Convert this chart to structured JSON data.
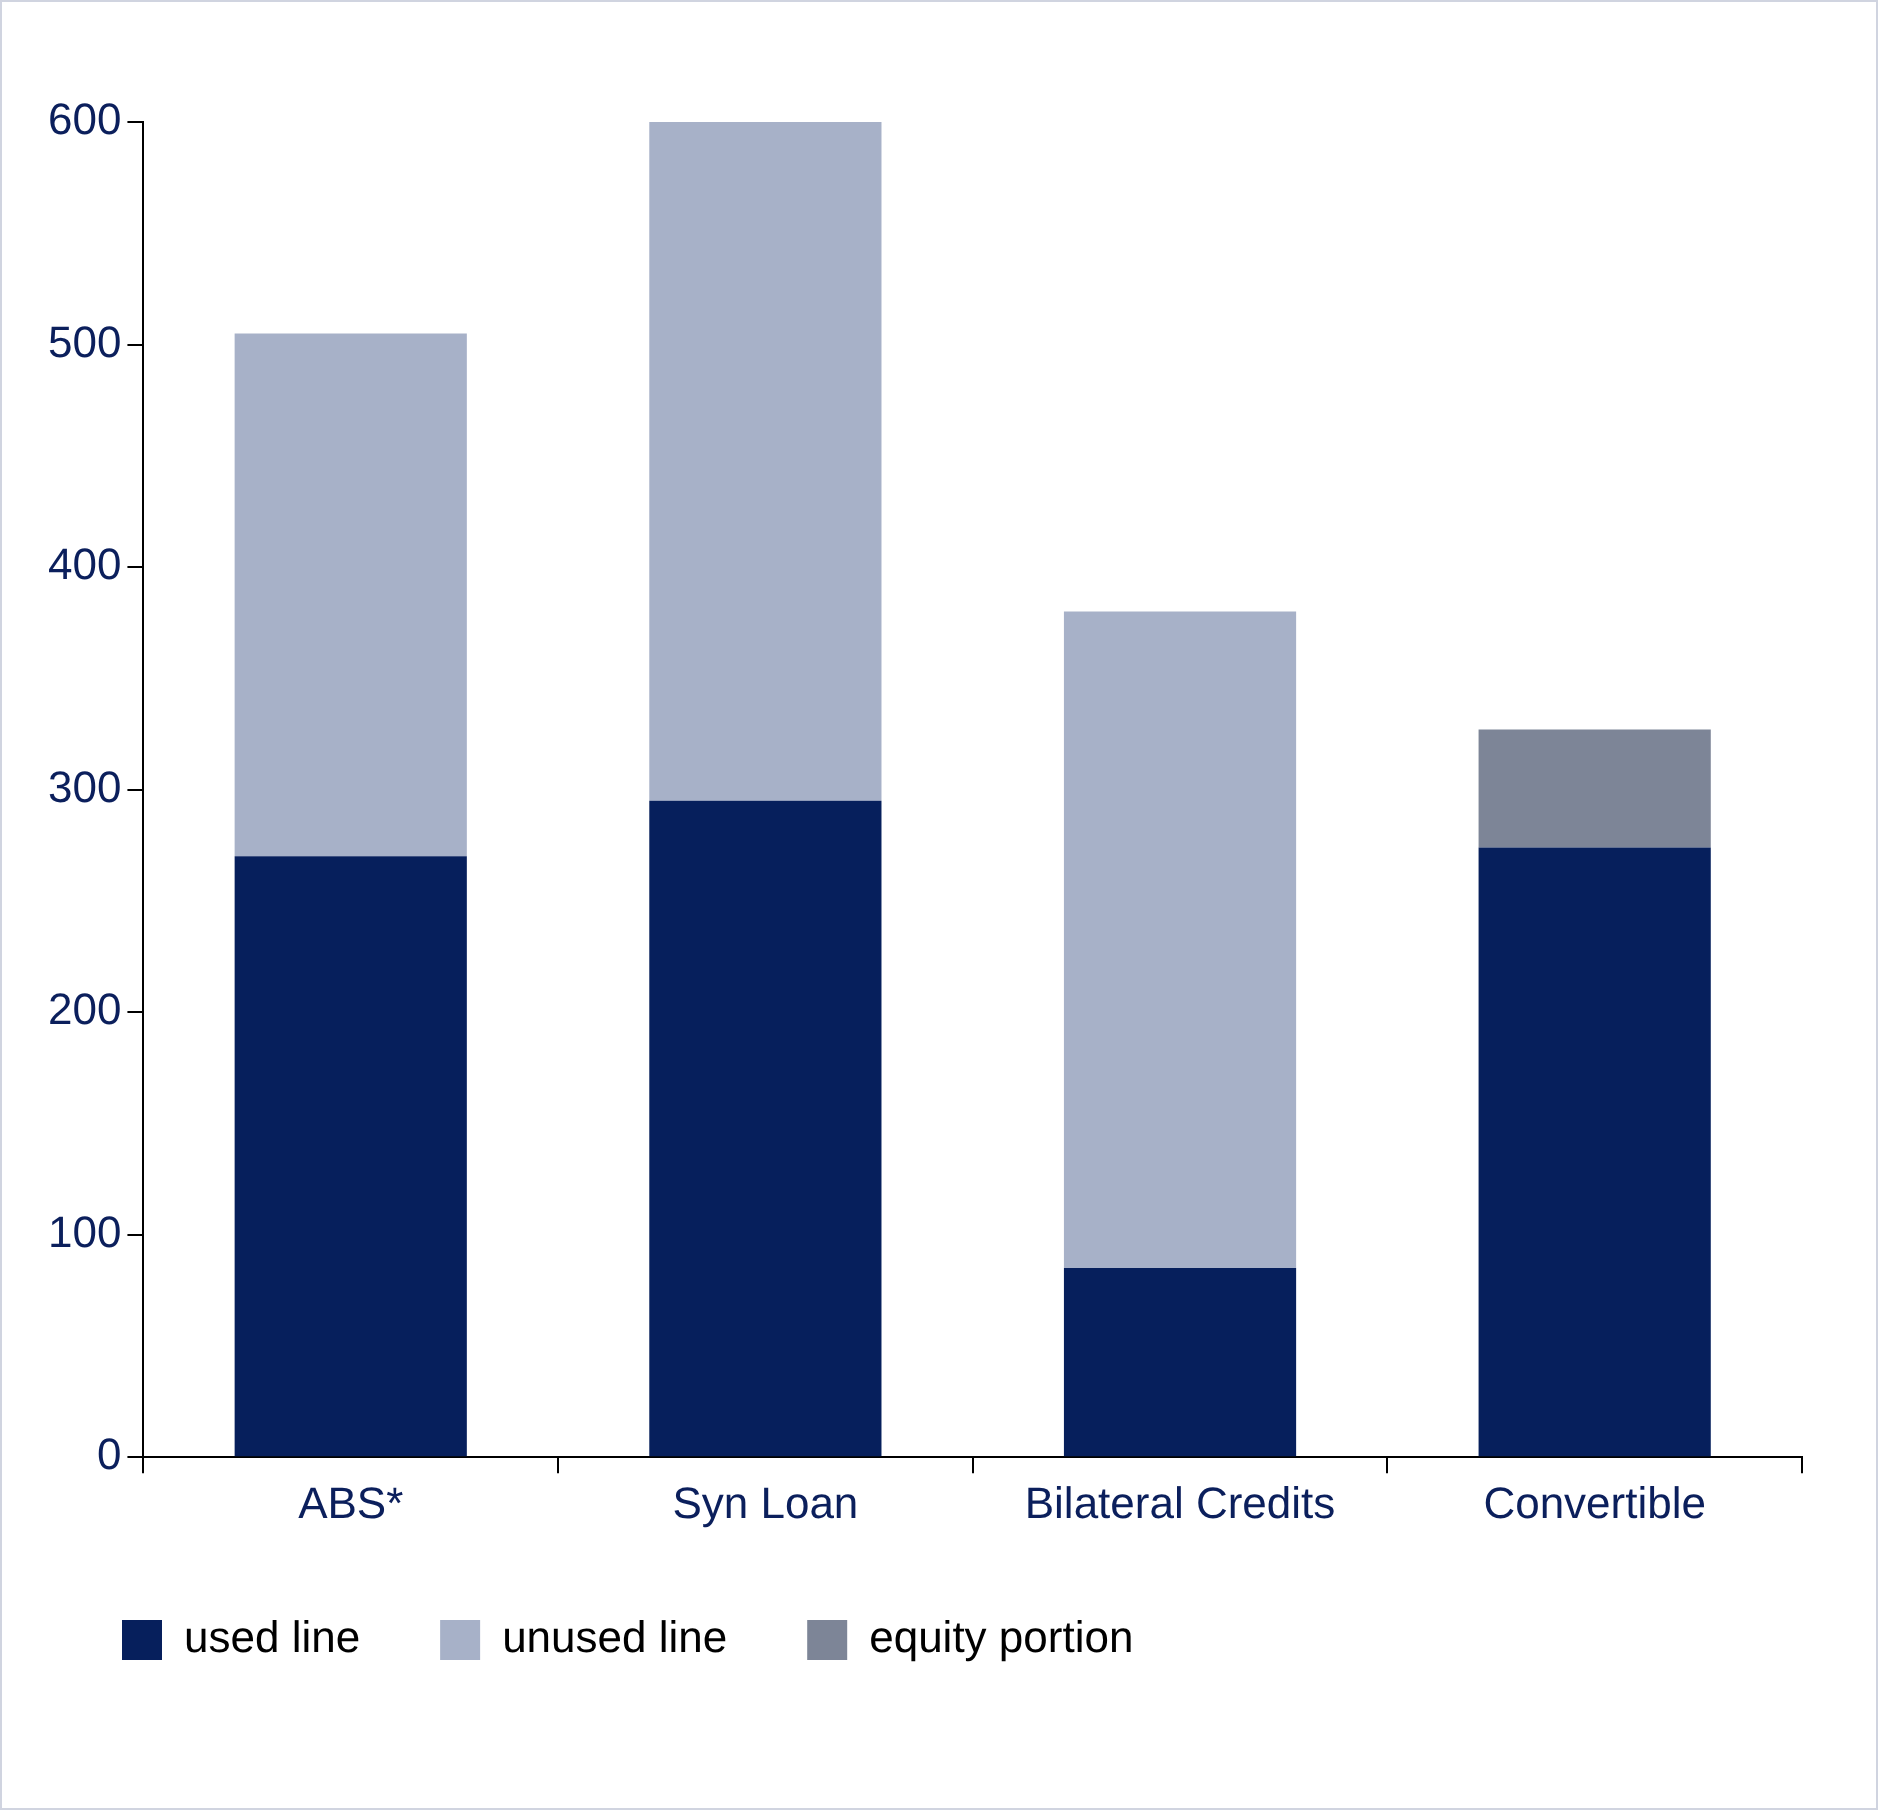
{
  "chart_data": {
    "type": "bar",
    "stacked": true,
    "categories": [
      "ABS*",
      "Syn Loan",
      "Bilateral Credits",
      "Convertible"
    ],
    "series": [
      {
        "name": "used line",
        "color": "#061f5c",
        "values": [
          270,
          295,
          85,
          274
        ]
      },
      {
        "name": "unused line",
        "color": "#a7b1c8",
        "values": [
          235,
          305,
          295,
          null
        ]
      },
      {
        "name": "equity portion",
        "color": "#7d8597",
        "values": [
          null,
          null,
          null,
          53
        ]
      }
    ],
    "ylim": [
      0,
      600
    ],
    "yticks": [
      0,
      100,
      200,
      300,
      400,
      500,
      600
    ],
    "grid": false,
    "legend": "bottom"
  }
}
